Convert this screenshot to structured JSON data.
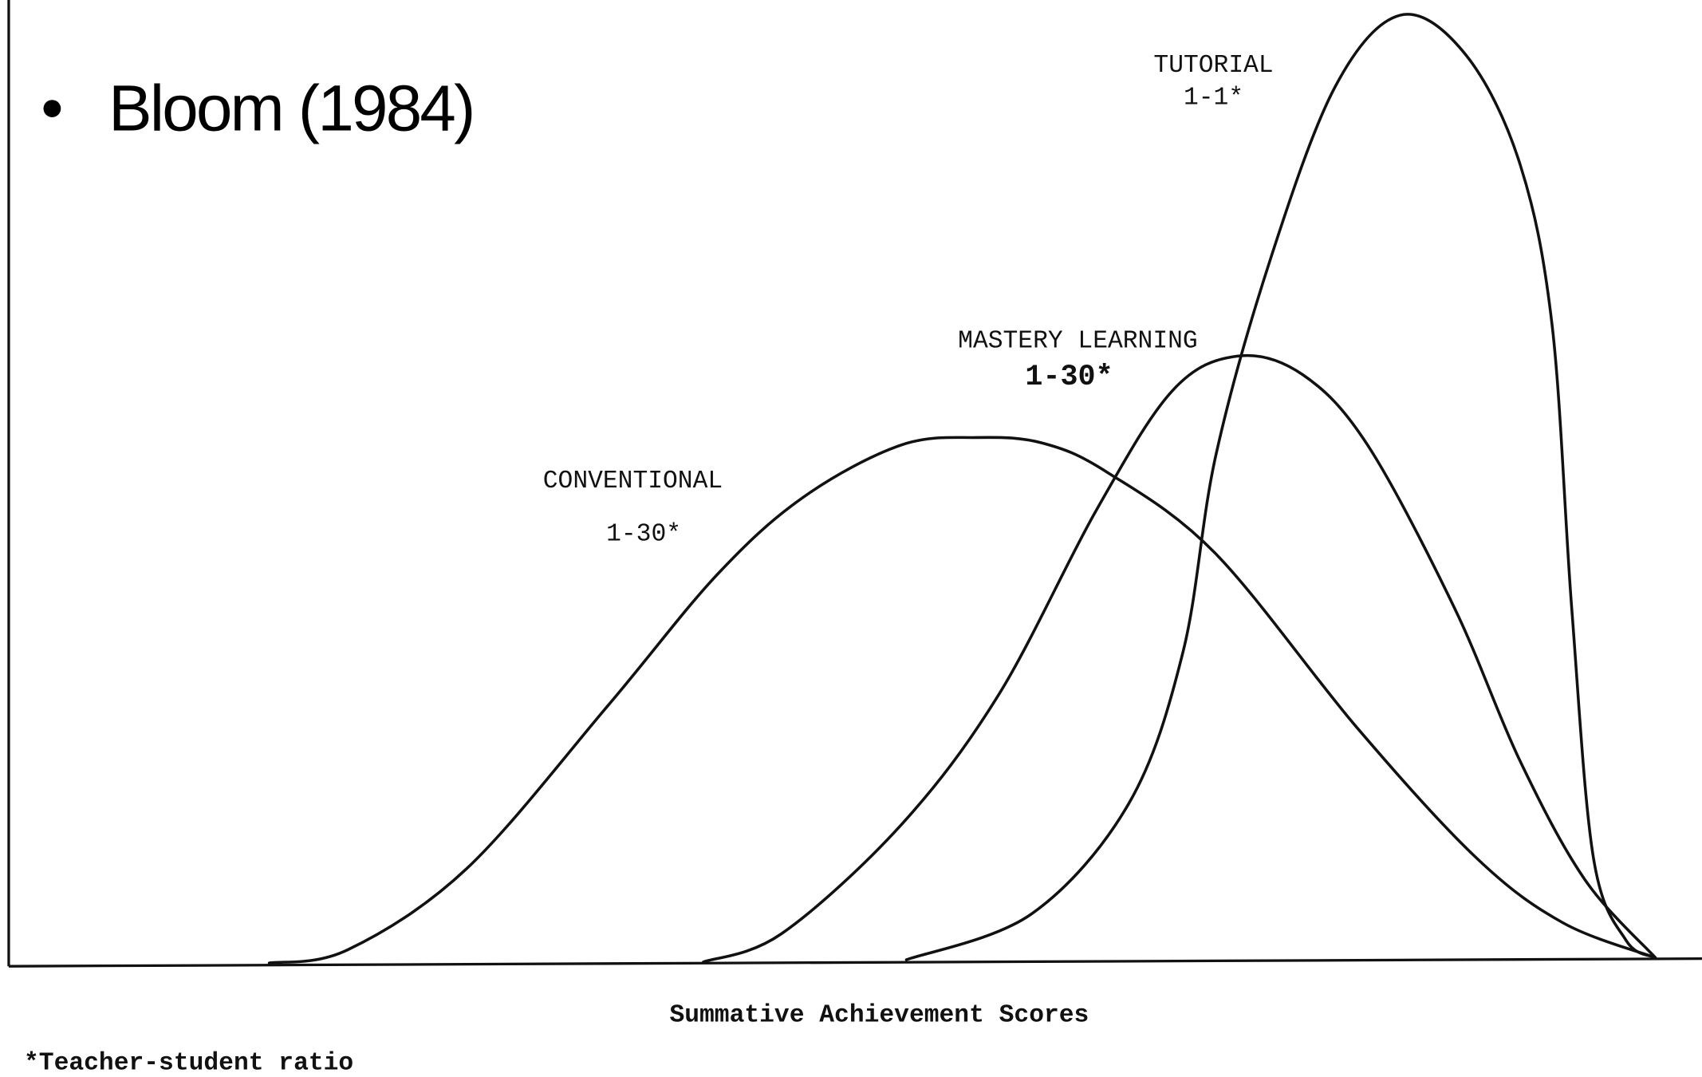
{
  "slide": {
    "title": "Bloom (1984)"
  },
  "diagram": {
    "curves": [
      {
        "label": "TUTORIAL",
        "ratio": "1-1*"
      },
      {
        "label": "MASTERY LEARNING",
        "ratio": "1-30*"
      },
      {
        "label": "CONVENTIONAL",
        "ratio": "1-30*"
      }
    ],
    "x_label": "Summative Achievement Scores",
    "footnote": "*Teacher-student ratio"
  }
}
